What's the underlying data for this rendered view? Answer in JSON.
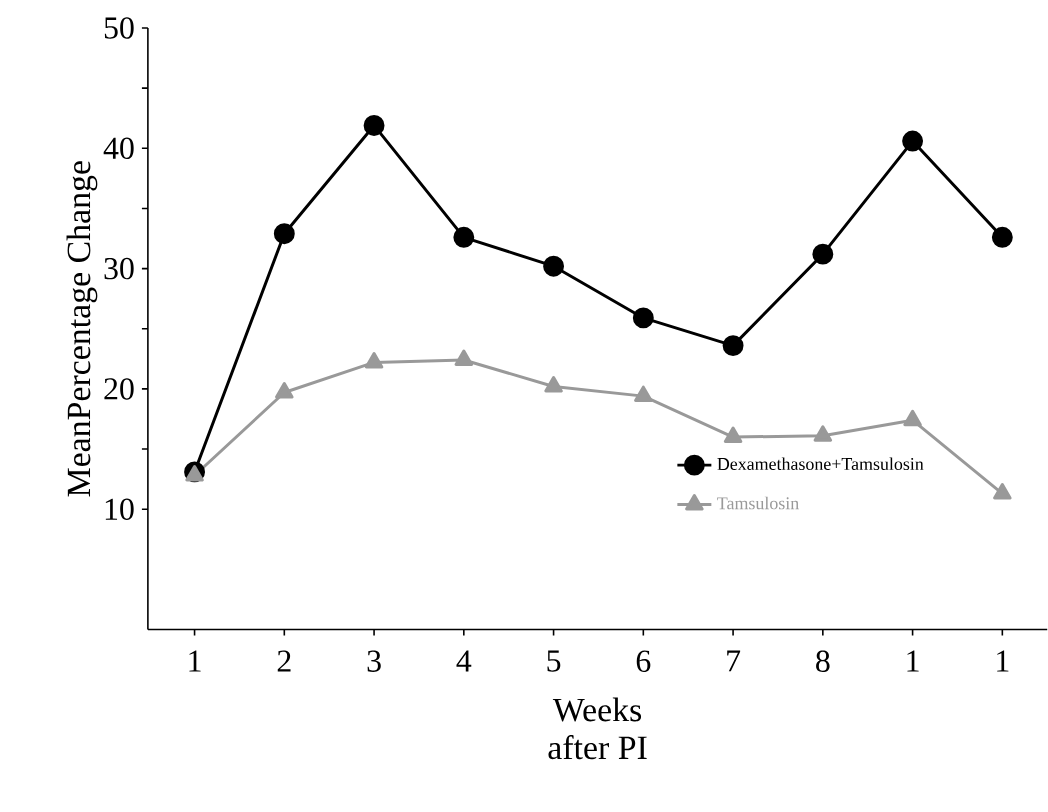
{
  "chart_data": {
    "type": "line",
    "xlabel": "Weeks\nafter PI",
    "ylabel": "MeanPercentage Change",
    "categories": [
      "1",
      "2",
      "3",
      "4",
      "5",
      "6",
      "7",
      "8",
      "1",
      "1"
    ],
    "series": [
      {
        "name": "Dexamethasone+Tamsulosin",
        "color": "#000000",
        "marker": "circle",
        "values": [
          13.1,
          32.9,
          41.9,
          32.6,
          30.2,
          25.9,
          23.6,
          31.2,
          40.6,
          32.6
        ]
      },
      {
        "name": "Tamsulosin",
        "color": "#999999",
        "marker": "triangle",
        "values": [
          12.8,
          19.7,
          22.2,
          22.4,
          20.2,
          19.4,
          16.0,
          16.1,
          17.4,
          11.3
        ]
      }
    ],
    "ylim": [
      0,
      50
    ],
    "yticks": [
      10,
      20,
      30,
      40,
      50
    ],
    "grid": false,
    "legend": "bottom right",
    "line_style": "solid"
  }
}
